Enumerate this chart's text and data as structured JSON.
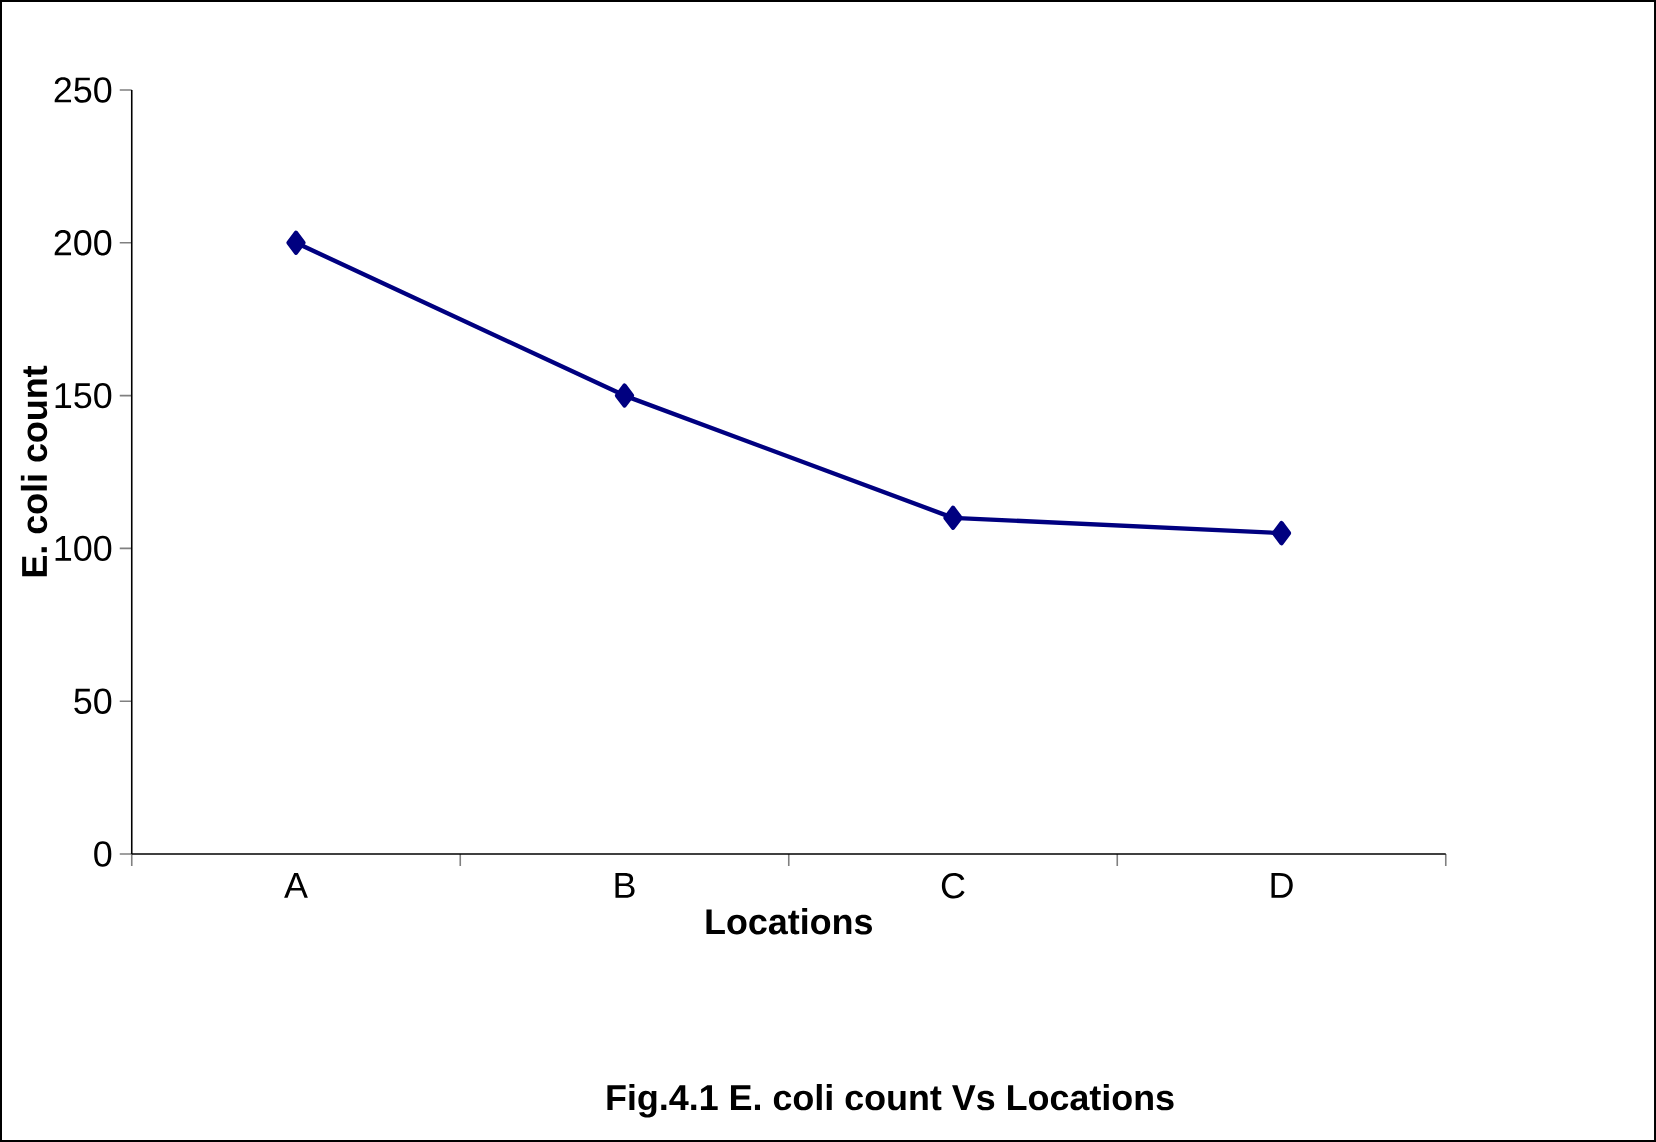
{
  "chart_data": {
    "type": "line",
    "xlabel": "Locations",
    "ylabel": "E. coli count",
    "categories": [
      "A",
      "B",
      "C",
      "D"
    ],
    "series": [
      {
        "color": "#000080",
        "values": [
          200,
          150,
          110,
          105
        ]
      }
    ],
    "ylim": [
      0,
      250
    ],
    "yticks": [
      0,
      50,
      100,
      150,
      200,
      250
    ],
    "marker": "diamond",
    "line_style": "solid",
    "grid": false,
    "annotations": [
      "Fig.4.1 E. coli count Vs Locations"
    ]
  }
}
